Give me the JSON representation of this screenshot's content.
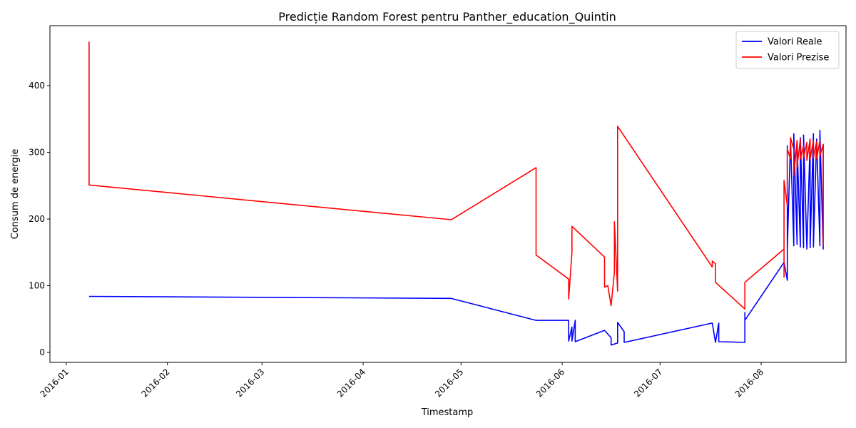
{
  "chart_data": {
    "type": "line",
    "title": "Predicție Random Forest pentru Panther_education_Quintin",
    "xlabel": "Timestamp",
    "ylabel": "Consum de energie",
    "x_ticks": [
      "2016-01",
      "2016-02",
      "2016-03",
      "2016-04",
      "2016-05",
      "2016-06",
      "2016-07",
      "2016-08"
    ],
    "y_ticks": [
      0,
      100,
      200,
      300,
      400
    ],
    "xlim": [
      "2015-12-27",
      "2016-08-27"
    ],
    "ylim": [
      -15,
      490
    ],
    "grid": false,
    "legend_position": "top-right",
    "series": [
      {
        "name": "Valori Reale",
        "color": "#0000ff",
        "points": [
          [
            "2016-01-08",
            84
          ],
          [
            "2016-04-28",
            81
          ],
          [
            "2016-05-24",
            48
          ],
          [
            "2016-06-03",
            48
          ],
          [
            "2016-06-03",
            17
          ],
          [
            "2016-06-04",
            38
          ],
          [
            "2016-06-04",
            17
          ],
          [
            "2016-06-05",
            48
          ],
          [
            "2016-06-05",
            16
          ],
          [
            "2016-06-14",
            33
          ],
          [
            "2016-06-16",
            22
          ],
          [
            "2016-06-16",
            11
          ],
          [
            "2016-06-18",
            14
          ],
          [
            "2016-06-18",
            45
          ],
          [
            "2016-06-20",
            31
          ],
          [
            "2016-06-20",
            15
          ],
          [
            "2016-07-17",
            44
          ],
          [
            "2016-07-18",
            15
          ],
          [
            "2016-07-19",
            44
          ],
          [
            "2016-07-19",
            16
          ],
          [
            "2016-07-27",
            15
          ],
          [
            "2016-07-27",
            60
          ],
          [
            "2016-07-27",
            48
          ],
          [
            "2016-08-08",
            135
          ],
          [
            "2016-08-09",
            108
          ],
          [
            "2016-08-09",
            310
          ],
          [
            "2016-08-09",
            155
          ],
          [
            "2016-08-10",
            318
          ],
          [
            "2016-08-11",
            160
          ],
          [
            "2016-08-11",
            328
          ],
          [
            "2016-08-12",
            162
          ],
          [
            "2016-08-12",
            315
          ],
          [
            "2016-08-13",
            158
          ],
          [
            "2016-08-13",
            322
          ],
          [
            "2016-08-14",
            157
          ],
          [
            "2016-08-14",
            326
          ],
          [
            "2016-08-15",
            155
          ],
          [
            "2016-08-16",
            318
          ],
          [
            "2016-08-16",
            157
          ],
          [
            "2016-08-17",
            328
          ],
          [
            "2016-08-17",
            158
          ],
          [
            "2016-08-18",
            320
          ],
          [
            "2016-08-19",
            160
          ],
          [
            "2016-08-19",
            333
          ],
          [
            "2016-08-20",
            155
          ],
          [
            "2016-08-20",
            312
          ]
        ]
      },
      {
        "name": "Valori Prezise",
        "color": "#ff0000",
        "points": [
          [
            "2016-01-08",
            466
          ],
          [
            "2016-01-08",
            251
          ],
          [
            "2016-04-28",
            199
          ],
          [
            "2016-05-24",
            277
          ],
          [
            "2016-05-24",
            146
          ],
          [
            "2016-06-03",
            110
          ],
          [
            "2016-06-03",
            80
          ],
          [
            "2016-06-04",
            150
          ],
          [
            "2016-06-04",
            189
          ],
          [
            "2016-06-14",
            143
          ],
          [
            "2016-06-14",
            98
          ],
          [
            "2016-06-15",
            100
          ],
          [
            "2016-06-16",
            70
          ],
          [
            "2016-06-17",
            120
          ],
          [
            "2016-06-17",
            196
          ],
          [
            "2016-06-18",
            92
          ],
          [
            "2016-06-18",
            339
          ],
          [
            "2016-07-17",
            128
          ],
          [
            "2016-07-17",
            137
          ],
          [
            "2016-07-18",
            133
          ],
          [
            "2016-07-18",
            105
          ],
          [
            "2016-07-27",
            65
          ],
          [
            "2016-07-27",
            105
          ],
          [
            "2016-08-08",
            155
          ],
          [
            "2016-08-08",
            113
          ],
          [
            "2016-08-08",
            258
          ],
          [
            "2016-08-09",
            220
          ],
          [
            "2016-08-09",
            305
          ],
          [
            "2016-08-10",
            290
          ],
          [
            "2016-08-10",
            322
          ],
          [
            "2016-08-11",
            305
          ],
          [
            "2016-08-11",
            265
          ],
          [
            "2016-08-12",
            318
          ],
          [
            "2016-08-12",
            278
          ],
          [
            "2016-08-13",
            320
          ],
          [
            "2016-08-13",
            290
          ],
          [
            "2016-08-14",
            310
          ],
          [
            "2016-08-14",
            292
          ],
          [
            "2016-08-15",
            315
          ],
          [
            "2016-08-15",
            288
          ],
          [
            "2016-08-16",
            320
          ],
          [
            "2016-08-16",
            290
          ],
          [
            "2016-08-17",
            318
          ],
          [
            "2016-08-17",
            292
          ],
          [
            "2016-08-18",
            316
          ],
          [
            "2016-08-18",
            290
          ],
          [
            "2016-08-19",
            318
          ],
          [
            "2016-08-19",
            295
          ],
          [
            "2016-08-20",
            312
          ],
          [
            "2016-08-20",
            160
          ]
        ]
      }
    ]
  }
}
